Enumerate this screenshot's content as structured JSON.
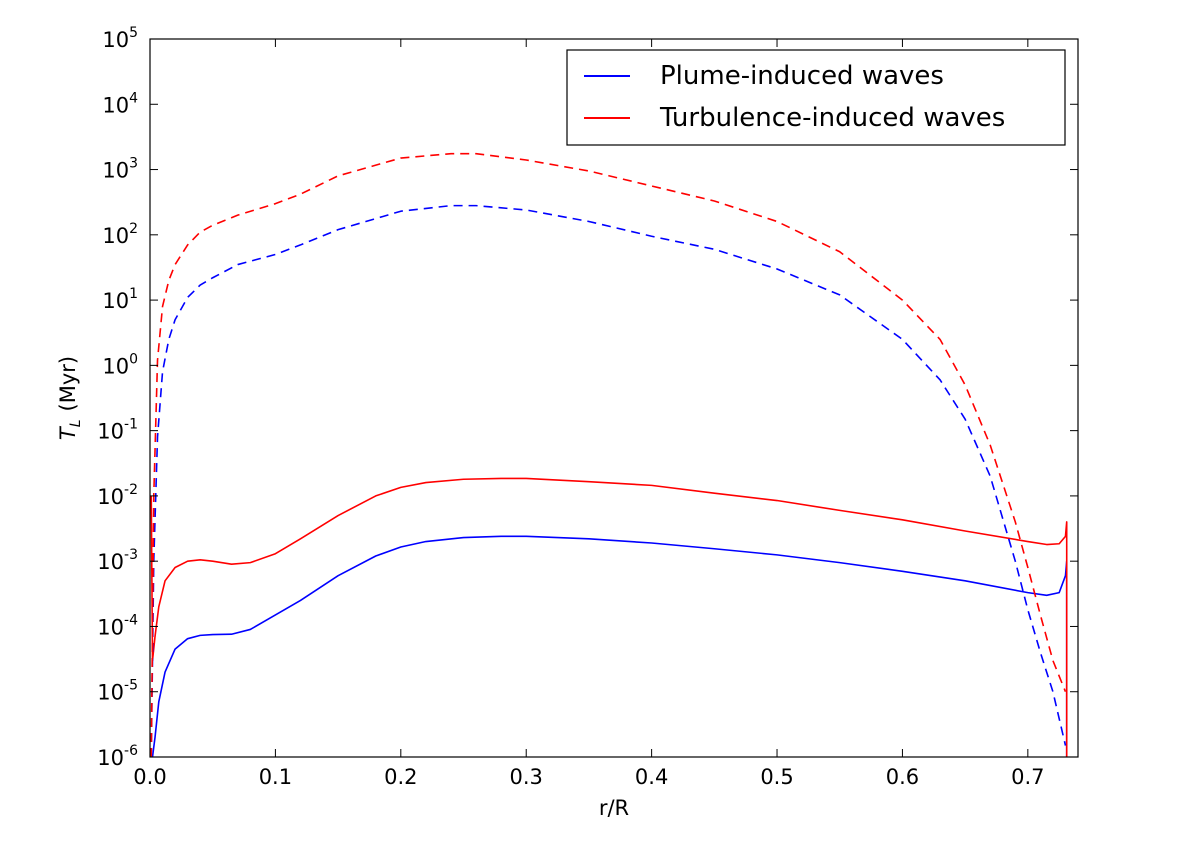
{
  "chart_data": {
    "type": "line",
    "title": "",
    "xlabel": "r/R",
    "ylabel": {
      "symbol": "T",
      "subscript": "L",
      "unit": "(Myr)"
    },
    "xlim": [
      0.0,
      0.74
    ],
    "ylim": [
      1e-06,
      100000.0
    ],
    "yscale": "log",
    "xticks": [
      0.0,
      0.1,
      0.2,
      0.3,
      0.4,
      0.5,
      0.6,
      0.7
    ],
    "xtick_labels": [
      "0.0",
      "0.1",
      "0.2",
      "0.3",
      "0.4",
      "0.5",
      "0.6",
      "0.7"
    ],
    "yticks": [
      {
        "value": 1e-06,
        "base": "10",
        "exp": "-6"
      },
      {
        "value": 1e-05,
        "base": "10",
        "exp": "-5"
      },
      {
        "value": 0.0001,
        "base": "10",
        "exp": "-4"
      },
      {
        "value": 0.001,
        "base": "10",
        "exp": "-3"
      },
      {
        "value": 0.01,
        "base": "10",
        "exp": "-2"
      },
      {
        "value": 0.1,
        "base": "10",
        "exp": "-1"
      },
      {
        "value": 1.0,
        "base": "10",
        "exp": "0"
      },
      {
        "value": 10.0,
        "base": "10",
        "exp": "1"
      },
      {
        "value": 100.0,
        "base": "10",
        "exp": "2"
      },
      {
        "value": 1000.0,
        "base": "10",
        "exp": "3"
      },
      {
        "value": 10000.0,
        "base": "10",
        "exp": "4"
      },
      {
        "value": 100000.0,
        "base": "10",
        "exp": "5"
      }
    ],
    "legend": {
      "placement": "top-right",
      "entries": [
        {
          "label": "Plume-induced waves",
          "color": "#0000ff"
        },
        {
          "label": "Turbulence-induced waves",
          "color": "#ff0000"
        }
      ]
    },
    "series": [
      {
        "name": "Plume-induced waves (solid)",
        "color": "#0000ff",
        "style": "solid",
        "x": [
          0.002,
          0.004,
          0.007,
          0.012,
          0.02,
          0.03,
          0.04,
          0.05,
          0.065,
          0.08,
          0.1,
          0.12,
          0.15,
          0.18,
          0.2,
          0.22,
          0.25,
          0.28,
          0.3,
          0.35,
          0.4,
          0.45,
          0.5,
          0.55,
          0.6,
          0.65,
          0.7,
          0.715,
          0.725,
          0.73,
          0.731,
          0.731
        ],
        "y": [
          1e-06,
          2e-06,
          7e-06,
          2e-05,
          4.5e-05,
          6.5e-05,
          7.3e-05,
          7.5e-05,
          7.6e-05,
          9e-05,
          0.00015,
          0.00025,
          0.0006,
          0.0012,
          0.00165,
          0.002,
          0.0023,
          0.0024,
          0.0024,
          0.0022,
          0.0019,
          0.00155,
          0.00125,
          0.00095,
          0.0007,
          0.0005,
          0.00033,
          0.0003,
          0.00033,
          0.0006,
          0.001,
          1e-06
        ]
      },
      {
        "name": "Turbulence-induced waves (solid)",
        "color": "#ff0000",
        "style": "solid",
        "x": [
          0.001,
          0.002,
          0.004,
          0.007,
          0.012,
          0.02,
          0.03,
          0.04,
          0.05,
          0.065,
          0.08,
          0.1,
          0.12,
          0.15,
          0.18,
          0.2,
          0.22,
          0.25,
          0.28,
          0.3,
          0.35,
          0.4,
          0.45,
          0.5,
          0.55,
          0.6,
          0.65,
          0.7,
          0.715,
          0.725,
          0.73,
          0.731,
          0.731
        ],
        "y": [
          0.01,
          3e-05,
          7e-05,
          0.0002,
          0.0005,
          0.0008,
          0.001,
          0.00105,
          0.001,
          0.0009,
          0.00095,
          0.0013,
          0.0022,
          0.005,
          0.01,
          0.0135,
          0.016,
          0.018,
          0.0185,
          0.0185,
          0.0165,
          0.0145,
          0.011,
          0.0085,
          0.006,
          0.0043,
          0.0029,
          0.002,
          0.0018,
          0.00185,
          0.0024,
          0.004,
          1e-06
        ]
      },
      {
        "name": "Plume-induced waves (dashed)",
        "color": "#0000ff",
        "style": "dashed",
        "x": [
          0.001,
          0.003,
          0.006,
          0.01,
          0.015,
          0.02,
          0.03,
          0.04,
          0.05,
          0.07,
          0.1,
          0.12,
          0.15,
          0.2,
          0.24,
          0.26,
          0.3,
          0.35,
          0.4,
          0.45,
          0.5,
          0.55,
          0.6,
          0.63,
          0.65,
          0.67,
          0.69,
          0.7,
          0.71,
          0.72,
          0.73
        ],
        "y": [
          1e-06,
          0.001,
          0.08,
          0.8,
          2.5,
          5,
          11,
          17,
          22,
          35,
          50,
          70,
          120,
          230,
          280,
          280,
          240,
          160,
          95,
          60,
          30,
          12,
          2.5,
          0.6,
          0.15,
          0.02,
          0.001,
          0.00018,
          4e-05,
          1e-05,
          1.5e-06
        ]
      },
      {
        "name": "Turbulence-induced waves (dashed)",
        "color": "#ff0000",
        "style": "dashed",
        "x": [
          0.001,
          0.003,
          0.006,
          0.01,
          0.015,
          0.02,
          0.03,
          0.04,
          0.05,
          0.07,
          0.1,
          0.12,
          0.15,
          0.2,
          0.24,
          0.26,
          0.3,
          0.35,
          0.4,
          0.45,
          0.5,
          0.55,
          0.6,
          0.63,
          0.65,
          0.67,
          0.69,
          0.7,
          0.71,
          0.72,
          0.73
        ],
        "y": [
          1e-06,
          0.01,
          1.2,
          8,
          20,
          35,
          70,
          110,
          140,
          200,
          300,
          420,
          800,
          1500,
          1750,
          1750,
          1400,
          950,
          560,
          330,
          160,
          55,
          10,
          2.5,
          0.5,
          0.06,
          0.004,
          0.0008,
          0.00015,
          3e-05,
          1e-05
        ]
      }
    ]
  }
}
